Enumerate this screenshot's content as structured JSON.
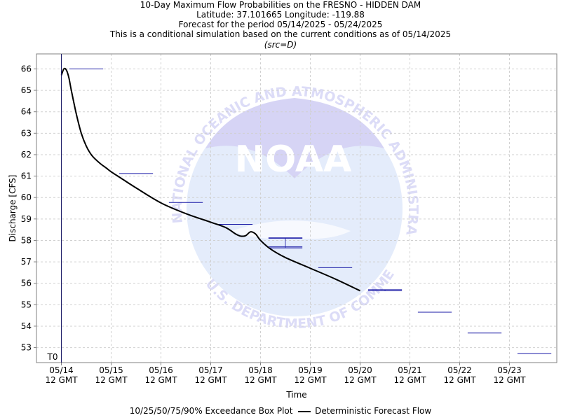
{
  "title": {
    "line1": "10-Day Maximum Flow Probabilities on the FRESNO - HIDDEN DAM",
    "line2": "Latitude: 37.101665 Longitude: -119.88",
    "line3": "Forecast for the period 05/14/2025 - 05/24/2025",
    "line4": "This is a conditional simulation based on the current conditions as of 05/14/2025",
    "line5": "(src=D)"
  },
  "watermark": {
    "logo_text": "NOAA",
    "arc_text": "NATIONAL OCEANIC AND ATMOSPHERIC ADMINISTRATION",
    "bottom_text": "U.S. DEPARTMENT OF COMMERCE"
  },
  "legend": {
    "box_plot_label": "10/25/50/75/90% Exceedance Box Plot",
    "flow_label": "Deterministic Forecast Flow"
  },
  "colors": {
    "forecast_line": "#000000",
    "box_plot": "#1a1aa6",
    "grid": "#d0d0d0",
    "watermark": "#dcdcf7"
  },
  "chart_data": {
    "type": "line",
    "xlabel": "Time",
    "ylabel": "Discharge [CFS]",
    "ylim": [
      52.3,
      66.7
    ],
    "xlim": [
      -0.5,
      9.95
    ],
    "yticks": [
      53,
      54,
      55,
      56,
      57,
      58,
      59,
      60,
      61,
      62,
      63,
      64,
      65,
      66
    ],
    "xticks": [
      {
        "day": 0,
        "date": "05/14",
        "time": "12 GMT"
      },
      {
        "day": 1,
        "date": "05/15",
        "time": "12 GMT"
      },
      {
        "day": 2,
        "date": "05/16",
        "time": "12 GMT"
      },
      {
        "day": 3,
        "date": "05/17",
        "time": "12 GMT"
      },
      {
        "day": 4,
        "date": "05/18",
        "time": "12 GMT"
      },
      {
        "day": 5,
        "date": "05/19",
        "time": "12 GMT"
      },
      {
        "day": 6,
        "date": "05/20",
        "time": "12 GMT"
      },
      {
        "day": 7,
        "date": "05/21",
        "time": "12 GMT"
      },
      {
        "day": 8,
        "date": "05/22",
        "time": "12 GMT"
      },
      {
        "day": 9,
        "date": "05/23",
        "time": "12 GMT"
      }
    ],
    "t0_label": "T0",
    "t0_day": 0,
    "grid": true,
    "series": [
      {
        "name": "Deterministic Forecast Flow",
        "x": [
          0,
          0.05,
          0.1,
          0.15,
          0.2,
          0.3,
          0.4,
          0.5,
          0.6,
          0.7,
          0.8,
          0.9,
          1.0,
          1.2,
          1.5,
          2.0,
          2.5,
          3.0,
          3.3,
          3.5,
          3.6,
          3.7,
          3.8,
          3.9,
          4.0,
          4.2,
          4.5,
          5.0,
          5.5,
          6.0
        ],
        "y": [
          65.7,
          66.0,
          65.95,
          65.6,
          65.0,
          63.9,
          63.0,
          62.4,
          62.0,
          61.75,
          61.55,
          61.38,
          61.2,
          60.9,
          60.45,
          59.75,
          59.25,
          58.85,
          58.6,
          58.3,
          58.2,
          58.22,
          58.4,
          58.3,
          58.0,
          57.6,
          57.2,
          56.7,
          56.2,
          55.65
        ]
      }
    ],
    "exceedance_markers": [
      {
        "day": 0.5,
        "values": [
          66.0,
          66.0,
          66.0,
          66.0,
          66.0
        ]
      },
      {
        "day": 1.5,
        "values": [
          61.12,
          61.12,
          61.12,
          61.12,
          61.12
        ]
      },
      {
        "day": 2.5,
        "values": [
          59.77,
          59.77,
          59.77,
          59.77,
          59.77
        ]
      },
      {
        "day": 3.5,
        "values": [
          58.75,
          58.75,
          58.75,
          58.75,
          58.75
        ]
      },
      {
        "day": 4.5,
        "values": [
          57.65,
          57.7,
          57.7,
          58.1,
          58.12
        ]
      },
      {
        "day": 5.5,
        "values": [
          56.73,
          56.73,
          56.73,
          56.73,
          56.73
        ]
      },
      {
        "day": 6.5,
        "values": [
          55.65,
          55.65,
          55.65,
          55.7,
          55.7
        ]
      },
      {
        "day": 7.5,
        "values": [
          54.65,
          54.65,
          54.65,
          54.65,
          54.65
        ]
      },
      {
        "day": 8.5,
        "values": [
          53.68,
          53.68,
          53.68,
          53.68,
          53.68
        ]
      },
      {
        "day": 9.5,
        "values": [
          52.72,
          52.72,
          52.72,
          52.72,
          52.72
        ]
      }
    ]
  }
}
